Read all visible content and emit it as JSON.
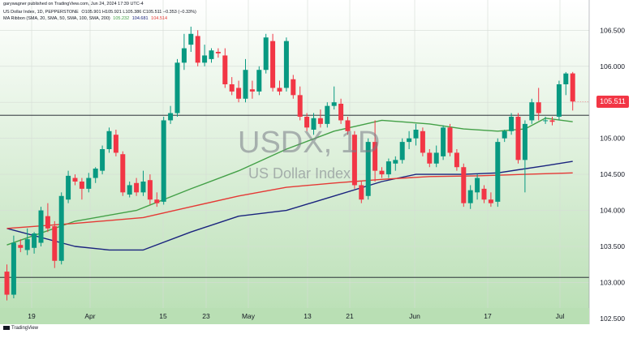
{
  "header": {
    "publisher": "garywagner published on TradingView.com, Jun 24, 2024 17:39 UTC-4",
    "symbol_line": "US Dollar Index, 1D, PEPPERSTONE",
    "ohlc": "O105.901 H105.921 L105.386 C105.511 −0.353 (−0.33%)",
    "ribbon_label": "MA Ribbon (SMA, 20, SMA, 50, SMA, 100, SMA, 200)",
    "ribbon_values": [
      {
        "text": "105.232",
        "color": "#43a047"
      },
      {
        "text": "104.681",
        "color": "#1a237e"
      },
      {
        "text": "104.514",
        "color": "#e53935"
      }
    ]
  },
  "watermark": {
    "symbol": "USDX, 1D",
    "name": "US Dollar Index"
  },
  "footer": {
    "brand": "TradingView"
  },
  "colors": {
    "up": "#089981",
    "down": "#f23645",
    "sma20": "#43a047",
    "sma50": "#1a237e",
    "sma100": "#e53935",
    "bg_top": "#ffffff",
    "bg_bottom": "#b9dfb4"
  },
  "current_price_label": "105.511",
  "chart_data": {
    "type": "candlestick",
    "y_axis": {
      "ylim": [
        102.42,
        106.92
      ],
      "ticks": [
        "102.500",
        "103.000",
        "103.500",
        "104.000",
        "104.500",
        "105.000",
        "105.500",
        "106.000",
        "106.500"
      ]
    },
    "x_axis": {
      "labels": [
        "19",
        "Apr",
        "15",
        "23",
        "May",
        "13",
        "21",
        "Jun",
        "17",
        "Jul"
      ]
    },
    "horizontal_lines": [
      105.32,
      103.07
    ],
    "candles": [
      {
        "o": 103.15,
        "h": 103.25,
        "l": 102.75,
        "c": 102.83
      },
      {
        "o": 102.83,
        "h": 103.65,
        "l": 102.78,
        "c": 103.55
      },
      {
        "o": 103.52,
        "h": 103.6,
        "l": 103.42,
        "c": 103.48
      },
      {
        "o": 103.45,
        "h": 103.75,
        "l": 103.38,
        "c": 103.6
      },
      {
        "o": 103.48,
        "h": 103.7,
        "l": 103.4,
        "c": 103.68
      },
      {
        "o": 103.55,
        "h": 104.05,
        "l": 103.5,
        "c": 104.0
      },
      {
        "o": 103.92,
        "h": 104.1,
        "l": 103.7,
        "c": 103.75
      },
      {
        "o": 103.78,
        "h": 103.85,
        "l": 103.2,
        "c": 103.3
      },
      {
        "o": 103.3,
        "h": 104.25,
        "l": 103.25,
        "c": 104.2
      },
      {
        "o": 104.15,
        "h": 104.55,
        "l": 104.1,
        "c": 104.48
      },
      {
        "o": 104.45,
        "h": 104.5,
        "l": 104.35,
        "c": 104.4
      },
      {
        "o": 104.4,
        "h": 104.45,
        "l": 104.15,
        "c": 104.3
      },
      {
        "o": 104.3,
        "h": 104.52,
        "l": 104.25,
        "c": 104.45
      },
      {
        "o": 104.45,
        "h": 104.6,
        "l": 104.38,
        "c": 104.58
      },
      {
        "o": 104.55,
        "h": 104.9,
        "l": 104.5,
        "c": 104.85
      },
      {
        "o": 104.85,
        "h": 105.15,
        "l": 104.8,
        "c": 105.1
      },
      {
        "o": 105.05,
        "h": 105.12,
        "l": 104.75,
        "c": 104.8
      },
      {
        "o": 104.78,
        "h": 104.82,
        "l": 104.2,
        "c": 104.25
      },
      {
        "o": 104.22,
        "h": 104.4,
        "l": 104.18,
        "c": 104.35
      },
      {
        "o": 104.38,
        "h": 104.45,
        "l": 104.2,
        "c": 104.25
      },
      {
        "o": 104.25,
        "h": 104.55,
        "l": 104.2,
        "c": 104.4
      },
      {
        "o": 104.42,
        "h": 104.5,
        "l": 104.08,
        "c": 104.15
      },
      {
        "o": 104.15,
        "h": 104.25,
        "l": 104.05,
        "c": 104.1
      },
      {
        "o": 104.12,
        "h": 105.3,
        "l": 104.08,
        "c": 105.25
      },
      {
        "o": 105.25,
        "h": 105.45,
        "l": 105.2,
        "c": 105.35
      },
      {
        "o": 105.35,
        "h": 106.1,
        "l": 105.3,
        "c": 106.05
      },
      {
        "o": 106.05,
        "h": 106.45,
        "l": 105.95,
        "c": 106.25
      },
      {
        "o": 106.3,
        "h": 106.55,
        "l": 106.2,
        "c": 106.45
      },
      {
        "o": 106.42,
        "h": 106.5,
        "l": 106.0,
        "c": 106.05
      },
      {
        "o": 106.05,
        "h": 106.3,
        "l": 106.0,
        "c": 106.15
      },
      {
        "o": 106.1,
        "h": 106.25,
        "l": 106.05,
        "c": 106.22
      },
      {
        "o": 106.2,
        "h": 106.25,
        "l": 106.12,
        "c": 106.18
      },
      {
        "o": 106.15,
        "h": 106.25,
        "l": 105.7,
        "c": 105.75
      },
      {
        "o": 105.75,
        "h": 105.85,
        "l": 105.6,
        "c": 105.65
      },
      {
        "o": 105.7,
        "h": 105.8,
        "l": 105.5,
        "c": 105.55
      },
      {
        "o": 105.55,
        "h": 106.1,
        "l": 105.5,
        "c": 105.95
      },
      {
        "o": 105.68,
        "h": 105.8,
        "l": 105.55,
        "c": 105.65
      },
      {
        "o": 105.65,
        "h": 106.0,
        "l": 105.6,
        "c": 105.95
      },
      {
        "o": 105.95,
        "h": 106.45,
        "l": 105.9,
        "c": 106.4
      },
      {
        "o": 106.35,
        "h": 106.45,
        "l": 105.65,
        "c": 105.7
      },
      {
        "o": 105.7,
        "h": 105.8,
        "l": 105.6,
        "c": 105.65
      },
      {
        "o": 105.7,
        "h": 106.4,
        "l": 105.65,
        "c": 106.35
      },
      {
        "o": 105.82,
        "h": 105.88,
        "l": 105.55,
        "c": 105.6
      },
      {
        "o": 105.6,
        "h": 105.72,
        "l": 105.25,
        "c": 105.3
      },
      {
        "o": 105.3,
        "h": 105.35,
        "l": 105.1,
        "c": 105.15
      },
      {
        "o": 105.12,
        "h": 105.35,
        "l": 105.05,
        "c": 105.28
      },
      {
        "o": 105.28,
        "h": 105.4,
        "l": 105.15,
        "c": 105.2
      },
      {
        "o": 105.2,
        "h": 105.5,
        "l": 105.15,
        "c": 105.45
      },
      {
        "o": 105.45,
        "h": 105.72,
        "l": 105.4,
        "c": 105.5
      },
      {
        "o": 105.48,
        "h": 105.55,
        "l": 105.2,
        "c": 105.25
      },
      {
        "o": 105.25,
        "h": 105.3,
        "l": 105.05,
        "c": 105.1
      },
      {
        "o": 105.05,
        "h": 105.1,
        "l": 104.3,
        "c": 104.35
      },
      {
        "o": 104.35,
        "h": 104.4,
        "l": 104.1,
        "c": 104.15
      },
      {
        "o": 104.2,
        "h": 105.0,
        "l": 104.15,
        "c": 104.95
      },
      {
        "o": 104.95,
        "h": 105.25,
        "l": 104.4,
        "c": 104.55
      },
      {
        "o": 104.55,
        "h": 104.6,
        "l": 104.45,
        "c": 104.5
      },
      {
        "o": 104.5,
        "h": 104.72,
        "l": 104.45,
        "c": 104.68
      },
      {
        "o": 104.65,
        "h": 104.75,
        "l": 104.55,
        "c": 104.7
      },
      {
        "o": 104.7,
        "h": 105.0,
        "l": 104.65,
        "c": 104.95
      },
      {
        "o": 104.95,
        "h": 105.1,
        "l": 104.85,
        "c": 105.0
      },
      {
        "o": 105.0,
        "h": 105.2,
        "l": 104.9,
        "c": 105.12
      },
      {
        "o": 105.1,
        "h": 105.15,
        "l": 104.75,
        "c": 104.8
      },
      {
        "o": 104.8,
        "h": 104.85,
        "l": 104.6,
        "c": 104.65
      },
      {
        "o": 104.65,
        "h": 104.9,
        "l": 104.6,
        "c": 104.8
      },
      {
        "o": 104.75,
        "h": 105.18,
        "l": 104.7,
        "c": 105.15
      },
      {
        "o": 105.15,
        "h": 105.2,
        "l": 104.75,
        "c": 104.8
      },
      {
        "o": 104.8,
        "h": 104.85,
        "l": 104.55,
        "c": 104.6
      },
      {
        "o": 104.6,
        "h": 104.65,
        "l": 104.05,
        "c": 104.1
      },
      {
        "o": 104.1,
        "h": 104.35,
        "l": 104.02,
        "c": 104.28
      },
      {
        "o": 104.25,
        "h": 104.5,
        "l": 104.15,
        "c": 104.45
      },
      {
        "o": 104.3,
        "h": 104.35,
        "l": 104.1,
        "c": 104.15
      },
      {
        "o": 104.15,
        "h": 104.25,
        "l": 104.05,
        "c": 104.1
      },
      {
        "o": 104.12,
        "h": 105.0,
        "l": 104.05,
        "c": 104.95
      },
      {
        "o": 105.0,
        "h": 105.12,
        "l": 104.95,
        "c": 105.1
      },
      {
        "o": 105.1,
        "h": 105.35,
        "l": 105.05,
        "c": 105.3
      },
      {
        "o": 105.3,
        "h": 105.35,
        "l": 104.65,
        "c": 104.7
      },
      {
        "o": 104.7,
        "h": 105.25,
        "l": 104.25,
        "c": 105.2
      },
      {
        "o": 105.25,
        "h": 105.55,
        "l": 105.2,
        "c": 105.5
      },
      {
        "o": 105.5,
        "h": 105.7,
        "l": 105.25,
        "c": 105.35
      },
      {
        "o": 105.25,
        "h": 105.3,
        "l": 105.2,
        "c": 105.25
      },
      {
        "o": 105.25,
        "h": 105.3,
        "l": 105.18,
        "c": 105.23
      },
      {
        "o": 105.3,
        "h": 105.8,
        "l": 105.25,
        "c": 105.75
      },
      {
        "o": 105.75,
        "h": 105.92,
        "l": 105.6,
        "c": 105.9
      },
      {
        "o": 105.901,
        "h": 105.921,
        "l": 105.386,
        "c": 105.511
      }
    ],
    "series": [
      {
        "name": "SMA 20",
        "color": "#43a047",
        "values": [
          [
            0,
            103.52
          ],
          [
            10,
            103.85
          ],
          [
            19,
            104.0
          ],
          [
            27,
            104.3
          ],
          [
            34,
            104.55
          ],
          [
            41,
            104.85
          ],
          [
            48,
            105.1
          ],
          [
            55,
            105.25
          ],
          [
            62,
            105.2
          ],
          [
            67,
            105.13
          ],
          [
            72,
            105.1
          ],
          [
            76,
            105.13
          ],
          [
            79,
            105.28
          ],
          [
            83,
            105.23
          ]
        ]
      },
      {
        "name": "SMA 50",
        "color": "#1a237e",
        "values": [
          [
            0,
            103.75
          ],
          [
            10,
            103.5
          ],
          [
            15,
            103.45
          ],
          [
            20,
            103.45
          ],
          [
            27,
            103.7
          ],
          [
            34,
            103.92
          ],
          [
            41,
            104.0
          ],
          [
            48,
            104.2
          ],
          [
            55,
            104.4
          ],
          [
            60,
            104.5
          ],
          [
            67,
            104.5
          ],
          [
            72,
            104.52
          ],
          [
            79,
            104.62
          ],
          [
            83,
            104.68
          ]
        ]
      },
      {
        "name": "SMA 100",
        "color": "#e53935",
        "values": [
          [
            0,
            103.75
          ],
          [
            10,
            103.82
          ],
          [
            20,
            103.9
          ],
          [
            27,
            104.05
          ],
          [
            34,
            104.2
          ],
          [
            41,
            104.32
          ],
          [
            48,
            104.38
          ],
          [
            55,
            104.43
          ],
          [
            62,
            104.47
          ],
          [
            69,
            104.48
          ],
          [
            76,
            104.5
          ],
          [
            83,
            104.52
          ]
        ]
      }
    ]
  }
}
